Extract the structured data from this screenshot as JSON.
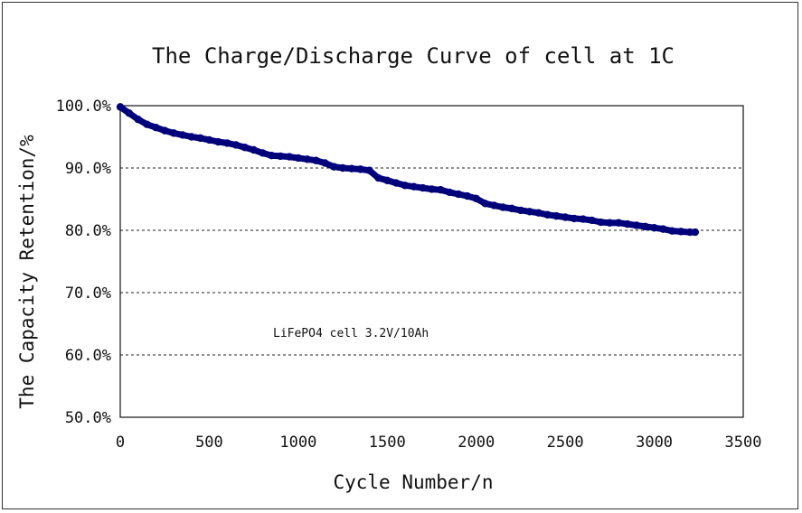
{
  "chart_data": {
    "type": "line",
    "title": "The Charge/Discharge Curve of cell at 1C",
    "xlabel": "Cycle Number/n",
    "ylabel": "The Capacity Retention/%",
    "xlim": [
      0,
      3500
    ],
    "ylim": [
      50,
      100
    ],
    "x_ticks": [
      0,
      500,
      1000,
      1500,
      2000,
      2500,
      3000,
      3500
    ],
    "x_tick_labels": [
      "0",
      "500",
      "1000",
      "1500",
      "2000",
      "2500",
      "3000",
      "3500"
    ],
    "y_ticks": [
      100,
      90,
      80,
      70,
      60,
      50
    ],
    "y_tick_labels": [
      "100.0%",
      "90.0%",
      "80.0%",
      "70.0%",
      "60.0%",
      "50.0%"
    ],
    "grid": "horizontal dashed",
    "annotation": "LiFePO4 cell 3.2V/10Ah",
    "series": [
      {
        "color": "#00007a",
        "x": [
          0,
          50,
          100,
          150,
          200,
          250,
          300,
          350,
          400,
          450,
          500,
          550,
          600,
          650,
          700,
          750,
          800,
          850,
          900,
          950,
          1000,
          1050,
          1100,
          1150,
          1200,
          1250,
          1300,
          1350,
          1400,
          1450,
          1500,
          1550,
          1600,
          1650,
          1700,
          1750,
          1800,
          1850,
          1900,
          1950,
          2000,
          2050,
          2100,
          2150,
          2200,
          2250,
          2300,
          2350,
          2400,
          2450,
          2500,
          2550,
          2600,
          2650,
          2700,
          2750,
          2800,
          2850,
          2900,
          2950,
          3000,
          3050,
          3100,
          3150,
          3200,
          3230
        ],
        "y": [
          99.8,
          98.8,
          97.8,
          97.0,
          96.5,
          96.0,
          95.6,
          95.3,
          95.0,
          94.8,
          94.5,
          94.2,
          94.0,
          93.7,
          93.3,
          92.9,
          92.4,
          92.0,
          91.9,
          91.8,
          91.6,
          91.4,
          91.2,
          90.8,
          90.2,
          90.0,
          89.9,
          89.8,
          89.6,
          88.4,
          88.0,
          87.6,
          87.2,
          87.0,
          86.8,
          86.6,
          86.5,
          86.1,
          85.8,
          85.5,
          85.1,
          84.3,
          84.0,
          83.7,
          83.5,
          83.2,
          83.0,
          82.8,
          82.5,
          82.3,
          82.1,
          81.9,
          81.8,
          81.6,
          81.3,
          81.2,
          81.2,
          81.0,
          80.8,
          80.6,
          80.4,
          80.2,
          79.9,
          79.8,
          79.7,
          79.7
        ]
      }
    ]
  }
}
